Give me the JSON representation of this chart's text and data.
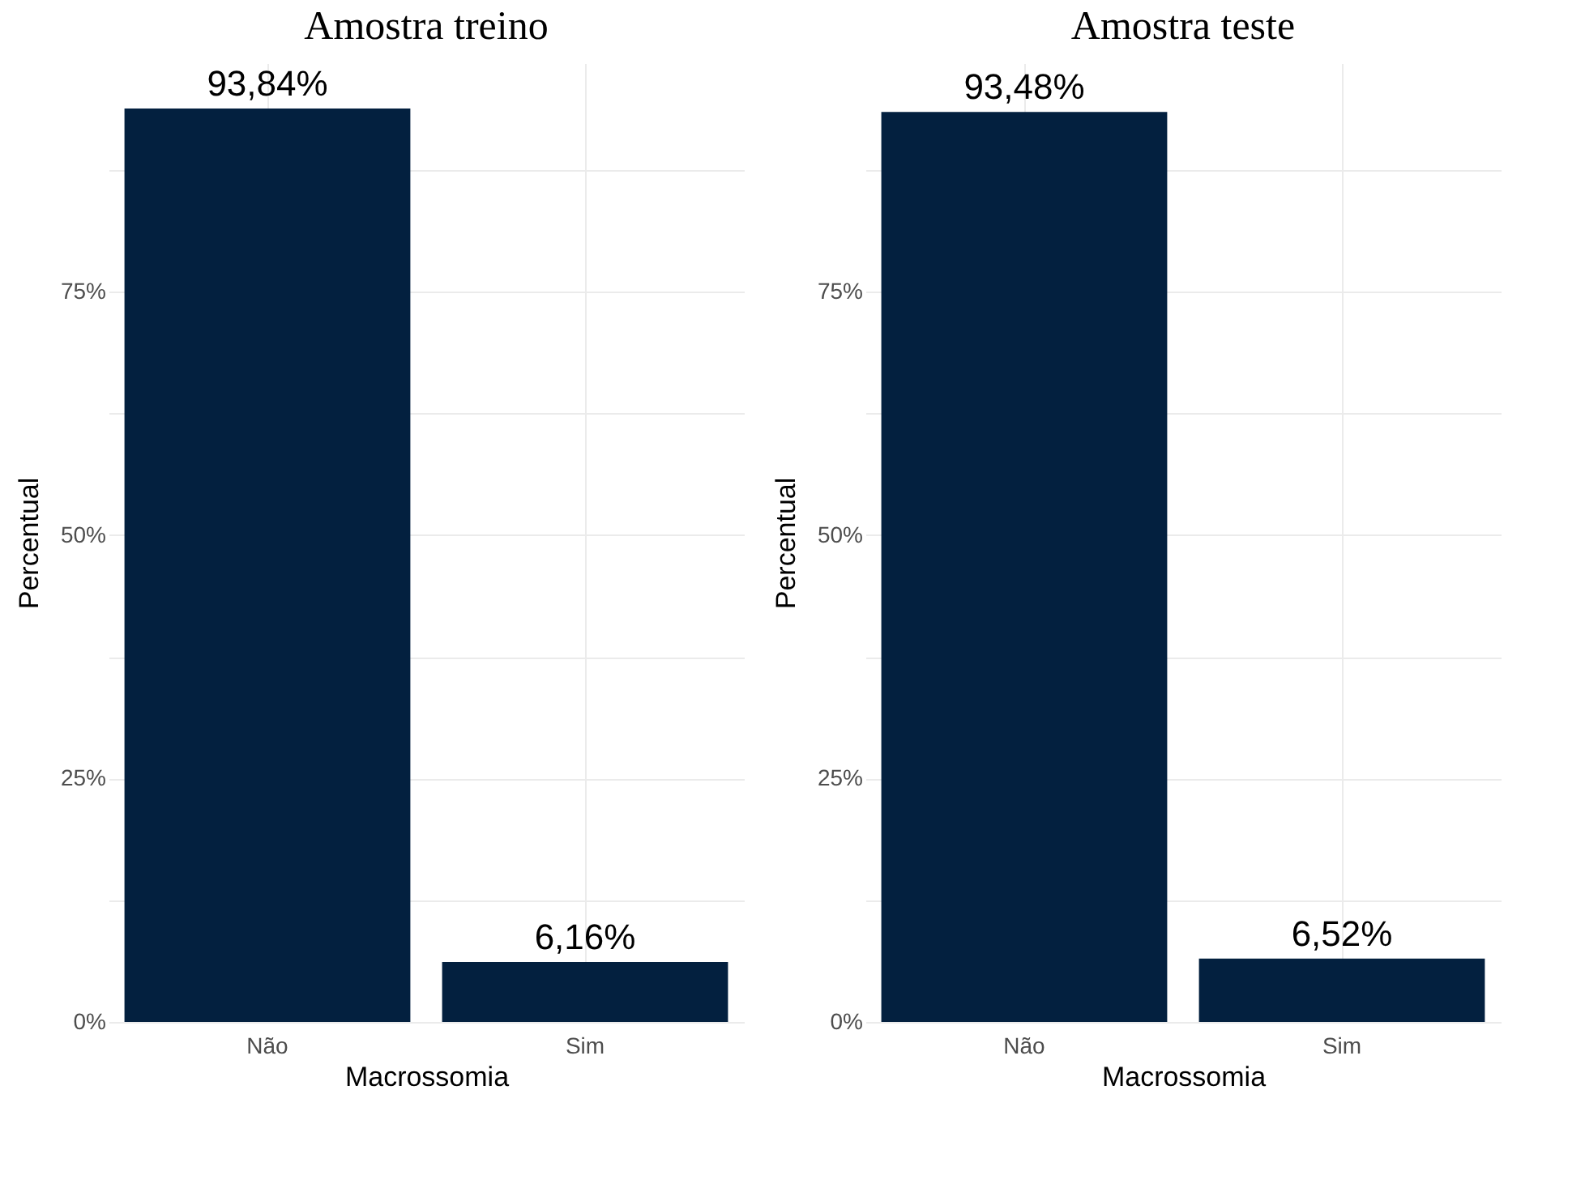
{
  "chart_data": [
    {
      "type": "bar",
      "title": "Amostra treino",
      "xlabel": "Macrossomia",
      "ylabel": "Percentual",
      "categories": [
        "Não",
        "Sim"
      ],
      "values": [
        93.84,
        6.16
      ],
      "value_labels": [
        "93,84%",
        "6,16%"
      ],
      "color": "#03203f",
      "ylim": [
        0,
        98.5
      ],
      "yticks": [
        {
          "value": 0,
          "label": "0%"
        },
        {
          "value": 12.5,
          "label": null
        },
        {
          "value": 25,
          "label": "25%"
        },
        {
          "value": 37.5,
          "label": null
        },
        {
          "value": 50,
          "label": "50%"
        },
        {
          "value": 62.5,
          "label": null
        },
        {
          "value": 75,
          "label": "75%"
        },
        {
          "value": 87.5,
          "label": null
        }
      ],
      "grid": true
    },
    {
      "type": "bar",
      "title": "Amostra teste",
      "xlabel": "Macrossomia",
      "ylabel": "Percentual",
      "categories": [
        "Não",
        "Sim"
      ],
      "values": [
        93.48,
        6.52
      ],
      "value_labels": [
        "93,48%",
        "6,52%"
      ],
      "color": "#03203f",
      "ylim": [
        0,
        98.5
      ],
      "yticks": [
        {
          "value": 0,
          "label": "0%"
        },
        {
          "value": 12.5,
          "label": null
        },
        {
          "value": 25,
          "label": "25%"
        },
        {
          "value": 37.5,
          "label": null
        },
        {
          "value": 50,
          "label": "50%"
        },
        {
          "value": 62.5,
          "label": null
        },
        {
          "value": 75,
          "label": "75%"
        },
        {
          "value": 87.5,
          "label": null
        }
      ],
      "grid": true
    }
  ]
}
